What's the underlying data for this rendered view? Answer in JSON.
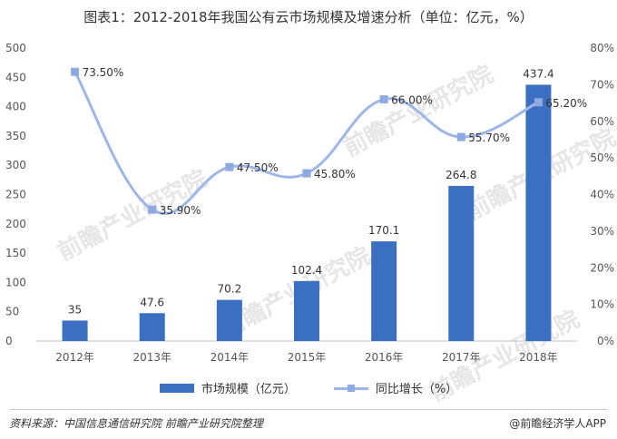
{
  "title": "图表1：2012-2018年我国公有云市场规模及增速分析（单位：亿元，%）",
  "chart_data": {
    "type": "bar",
    "categories": [
      "2012年",
      "2013年",
      "2014年",
      "2015年",
      "2016年",
      "2017年",
      "2018年"
    ],
    "series": [
      {
        "name": "市场规模（亿元）",
        "type": "bar",
        "axis": "left",
        "values": [
          35,
          47.6,
          70.2,
          102.4,
          170.1,
          264.8,
          437.4
        ],
        "labels": [
          "35",
          "47.6",
          "70.2",
          "102.4",
          "170.1",
          "264.8",
          "437.4"
        ]
      },
      {
        "name": "同比增长（%）",
        "type": "line",
        "axis": "right",
        "values": [
          73.5,
          35.9,
          47.5,
          45.8,
          66.0,
          55.7,
          65.2
        ],
        "labels": [
          "73.50%",
          "35.90%",
          "47.50%",
          "45.80%",
          "66.00%",
          "55.70%",
          "65.20%"
        ]
      }
    ],
    "y_left": {
      "ylim": [
        0,
        500
      ],
      "ticks": [
        "0",
        "50",
        "100",
        "150",
        "200",
        "250",
        "300",
        "350",
        "400",
        "450",
        "500"
      ]
    },
    "y_right": {
      "ylim": [
        0,
        80
      ],
      "ticks": [
        "0%",
        "10%",
        "20%",
        "30%",
        "40%",
        "50%",
        "60%",
        "70%",
        "80%"
      ]
    },
    "legend_position": "bottom",
    "grid": false
  },
  "legend": {
    "bar_label": "市场规模（亿元）",
    "line_label": "同比增长（%）"
  },
  "colors": {
    "bar": "#3b6fc2",
    "line": "#9fb6e8",
    "marker": "#8eaae3"
  },
  "footer": {
    "source": "资料来源：中国信息通信研究院 前瞻产业研究院整理",
    "brand": "@前瞻经济学人APP"
  },
  "watermark": "前瞻产业研究院"
}
